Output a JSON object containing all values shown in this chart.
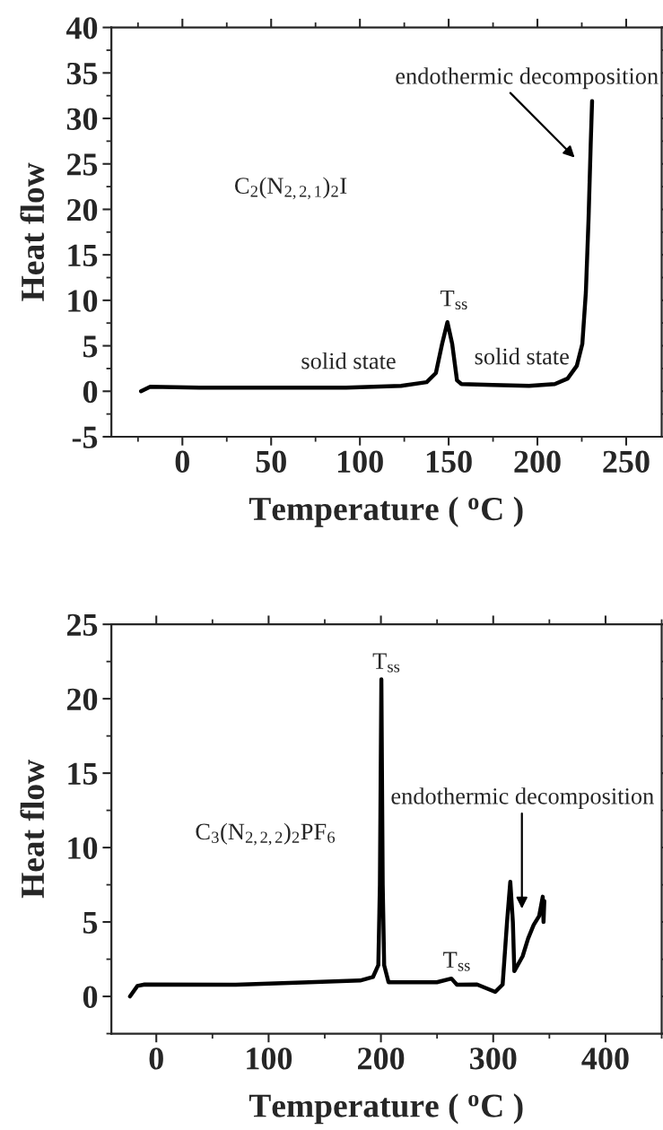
{
  "chart_data": [
    {
      "type": "line",
      "xlabel": "Temperature ( $^{o}$C )",
      "ylabel": "Heat flow",
      "xlim": [
        -40,
        270
      ],
      "ylim": [
        -5,
        40
      ],
      "xticks": [
        0,
        50,
        100,
        150,
        200,
        250
      ],
      "yticks": [
        -5,
        0,
        5,
        10,
        15,
        20,
        25,
        30,
        35,
        40
      ],
      "grid": false,
      "legend": false,
      "line_style": "solid",
      "marker": "none",
      "x": [
        -23.3,
        -18.1,
        9.7,
        51,
        92.2,
        123.2,
        137.6,
        142.8,
        146.3,
        149.3,
        152.0,
        154.7,
        157.2,
        174.7,
        195.3,
        209.8,
        217,
        222.2,
        225.3,
        227.3,
        228.8,
        230,
        230.8
      ],
      "series": [
        {
          "color": "#000000",
          "values": [
            0,
            0.5,
            0.4,
            0.4,
            0.4,
            0.6,
            1.0,
            2.0,
            5.2,
            7.6,
            5.2,
            1.2,
            0.8,
            0.7,
            0.6,
            0.8,
            1.4,
            2.8,
            5.2,
            10.9,
            18.9,
            27,
            31.9
          ]
        }
      ],
      "annotations": [
        "endothermic decomposition",
        "C$_{2}$(N$_{2,2,1}$)$_{2}$I",
        "T$_{ss}$",
        "solid state",
        "solid state"
      ]
    },
    {
      "type": "line",
      "xlabel": "Temperature ( $^{o}$C )",
      "ylabel": "Heat flow",
      "xlim": [
        -40,
        450
      ],
      "ylim": [
        -2.5,
        25
      ],
      "xticks": [
        0,
        100,
        200,
        300,
        400
      ],
      "yticks": [
        0,
        5,
        10,
        15,
        20,
        25
      ],
      "grid": false,
      "legend": false,
      "line_style": "solid",
      "marker": "none",
      "x": [
        -23.4,
        -16.9,
        -10.4,
        70.9,
        136,
        181.5,
        192.9,
        197.7,
        199.1,
        200.4,
        201.6,
        202.9,
        206.8,
        249.8,
        262.8,
        267.7,
        285.6,
        301.8,
        308.4,
        312.3,
        315.2,
        317.5,
        318.8,
        326.2,
        331.1,
        336,
        340.9,
        344.1,
        344.8,
        345.5
      ],
      "series": [
        {
          "color": "#000000",
          "values": [
            0,
            0.7,
            0.8,
            0.78,
            0.95,
            1.07,
            1.3,
            2.1,
            7.5,
            21.3,
            7.5,
            2.1,
            0.95,
            0.95,
            1.2,
            0.78,
            0.8,
            0.3,
            0.8,
            5.0,
            7.7,
            5.0,
            1.7,
            2.7,
            3.9,
            4.8,
            5.4,
            6.7,
            5.0,
            6.4
          ]
        }
      ],
      "annotations": [
        "endothermic decomposition",
        "C$_{3}$(N$_{2,2,2}$)$_{2}$PF$_{6}$",
        "T$_{ss}$",
        "T$_{ss}$"
      ]
    }
  ]
}
